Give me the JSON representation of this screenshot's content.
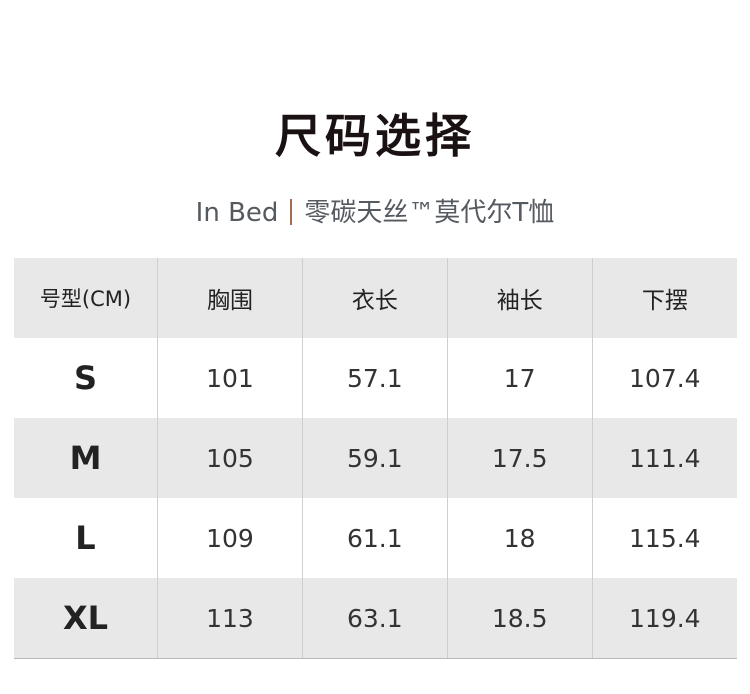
{
  "title": "尺码选择",
  "subtitle": {
    "brand": "In Bed",
    "product": "零碳天丝™莫代尔T恤"
  },
  "table": {
    "headers": [
      "号型(CM)",
      "胸围",
      "衣长",
      "袖长",
      "下摆"
    ],
    "rows": [
      [
        "S",
        "101",
        "57.1",
        "17",
        "107.4"
      ],
      [
        "M",
        "105",
        "59.1",
        "17.5",
        "111.4"
      ],
      [
        "L",
        "109",
        "61.1",
        "18",
        "115.4"
      ],
      [
        "XL",
        "113",
        "63.1",
        "18.5",
        "119.4"
      ]
    ]
  }
}
